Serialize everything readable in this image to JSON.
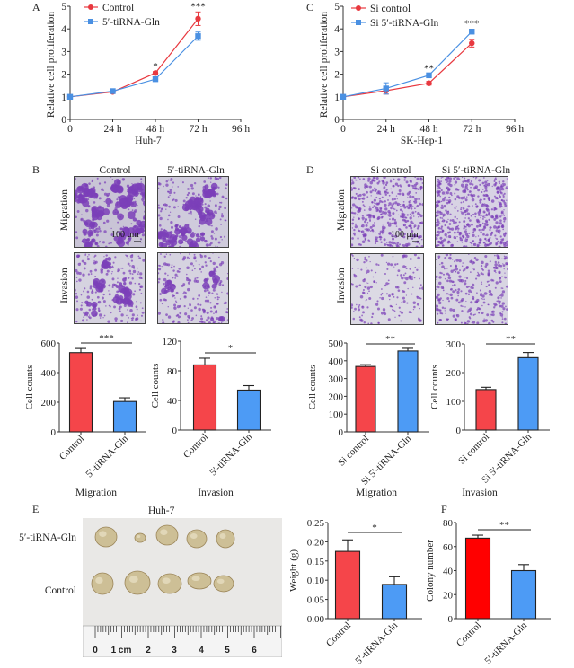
{
  "colors": {
    "control": "#e8383f",
    "treatment": "#4a90e2",
    "bar_red": "#f5454a",
    "bar_red_f": "#ff0000",
    "bar_blue": "#4d9bf5",
    "axis": "#333333",
    "stain": "#7b3fb8",
    "tumor": "#cdbf96"
  },
  "panels": {
    "A": {
      "letter": "A"
    },
    "B": {
      "letter": "B",
      "col_labels": [
        "Control",
        "5′-tiRNA-Gln"
      ],
      "row_labels": [
        "Migration",
        "Invasion"
      ],
      "scale_bar": "100 μm"
    },
    "C": {
      "letter": "C"
    },
    "D": {
      "letter": "D",
      "col_labels": [
        "Si control",
        "Si 5′-tiRNA-Gln"
      ],
      "row_labels": [
        "Migration",
        "Invasion"
      ],
      "scale_bar": "100 μm"
    },
    "E": {
      "letter": "E",
      "title": "Huh-7",
      "row_labels": [
        "5′-tiRNA-Gln",
        "Control"
      ],
      "ruler_labels": [
        "0",
        "1 cm",
        "2",
        "3",
        "4",
        "5",
        "6"
      ]
    },
    "F": {
      "letter": "F"
    }
  },
  "chart_data": [
    {
      "id": "A",
      "type": "line",
      "title": "",
      "xlabel": "Huh-7",
      "ylabel": "Relative cell proliferation",
      "x": [
        0,
        24,
        48,
        72
      ],
      "x_ticks": [
        "0",
        "24 h",
        "48 h",
        "72 h",
        "96 h"
      ],
      "x_tick_values": [
        0,
        24,
        48,
        72,
        96
      ],
      "xlim": [
        0,
        96
      ],
      "ylim": [
        0,
        5
      ],
      "y_ticks": [
        0,
        1,
        2,
        3,
        4,
        5
      ],
      "legend_position": "top-left",
      "series": [
        {
          "name": "Control",
          "marker": "circle",
          "values": [
            1.0,
            1.22,
            2.05,
            4.45
          ],
          "errors": [
            0.03,
            0.04,
            0.06,
            0.3
          ]
        },
        {
          "name": "5′-tiRNA-Gln",
          "marker": "square",
          "values": [
            1.0,
            1.25,
            1.78,
            3.68
          ],
          "errors": [
            0.03,
            0.05,
            0.1,
            0.18
          ]
        }
      ],
      "annotations": [
        {
          "x": 48,
          "text": "*"
        },
        {
          "x": 72,
          "text": "***"
        }
      ]
    },
    {
      "id": "C",
      "type": "line",
      "title": "",
      "xlabel": "SK-Hep-1",
      "ylabel": "Relative cell proliferation",
      "x": [
        0,
        24,
        48,
        72
      ],
      "x_ticks": [
        "0",
        "24 h",
        "48 h",
        "72 h",
        "96 h"
      ],
      "x_tick_values": [
        0,
        24,
        48,
        72,
        96
      ],
      "xlim": [
        0,
        96
      ],
      "ylim": [
        0,
        5
      ],
      "y_ticks": [
        0,
        1,
        2,
        3,
        4,
        5
      ],
      "legend_position": "top-left",
      "series": [
        {
          "name": "Si control",
          "marker": "circle",
          "values": [
            1.0,
            1.27,
            1.6,
            3.37
          ],
          "errors": [
            0.03,
            0.15,
            0.08,
            0.17
          ]
        },
        {
          "name": "Si 5′-tiRNA-Gln",
          "marker": "square",
          "values": [
            1.0,
            1.37,
            1.95,
            3.88
          ],
          "errors": [
            0.03,
            0.25,
            0.05,
            0.1
          ]
        }
      ],
      "annotations": [
        {
          "x": 48,
          "text": "**"
        },
        {
          "x": 72,
          "text": "***"
        }
      ]
    },
    {
      "id": "B-migration",
      "type": "bar",
      "xlabel": "Migration",
      "ylabel": "Cell counts",
      "categories": [
        "Control",
        "5′-tiRNA-Gln"
      ],
      "values": [
        535,
        205
      ],
      "errors": [
        28,
        25
      ],
      "ylim": [
        0,
        600
      ],
      "y_ticks": [
        0,
        200,
        400,
        600
      ],
      "significance": "***"
    },
    {
      "id": "B-invasion",
      "type": "bar",
      "xlabel": "Invasion",
      "ylabel": "Cell counts",
      "categories": [
        "Control",
        "5′-tiRNA-Gln"
      ],
      "values": [
        88,
        54
      ],
      "errors": [
        9,
        6
      ],
      "ylim": [
        0,
        120
      ],
      "y_ticks": [
        0,
        40,
        80,
        120
      ],
      "significance": "*"
    },
    {
      "id": "D-migration",
      "type": "bar",
      "xlabel": "Migration",
      "ylabel": "Cell counts",
      "categories": [
        "Si control",
        "Si 5′-tiRNA-Gln"
      ],
      "values": [
        368,
        455
      ],
      "errors": [
        10,
        15
      ],
      "ylim": [
        0,
        500
      ],
      "y_ticks": [
        0,
        100,
        200,
        300,
        400,
        500
      ],
      "significance": "**"
    },
    {
      "id": "D-invasion",
      "type": "bar",
      "xlabel": "Invasion",
      "ylabel": "Cell counts",
      "categories": [
        "Si control",
        "Si 5′-tiRNA-Gln"
      ],
      "values": [
        141,
        252
      ],
      "errors": [
        8,
        18
      ],
      "ylim": [
        0,
        300
      ],
      "y_ticks": [
        0,
        100,
        200,
        300
      ],
      "significance": "**"
    },
    {
      "id": "E-weight",
      "type": "bar",
      "xlabel": "",
      "ylabel": "Weight (g)",
      "categories": [
        "Control",
        "5′-tiRNA-Gln"
      ],
      "values": [
        0.175,
        0.089
      ],
      "errors": [
        0.03,
        0.02
      ],
      "ylim": [
        0,
        0.25
      ],
      "y_ticks": [
        "0.00",
        "0.05",
        "0.10",
        "0.15",
        "0.20",
        "0.25"
      ],
      "significance": "*"
    },
    {
      "id": "F",
      "type": "bar",
      "xlabel": "",
      "ylabel": "Colony number",
      "categories": [
        "Control",
        "5′-tiRNA-Gln"
      ],
      "values": [
        67,
        40
      ],
      "errors": [
        2.5,
        5
      ],
      "ylim": [
        0,
        80
      ],
      "y_ticks": [
        0,
        20,
        40,
        60,
        80
      ],
      "significance": "**"
    }
  ]
}
